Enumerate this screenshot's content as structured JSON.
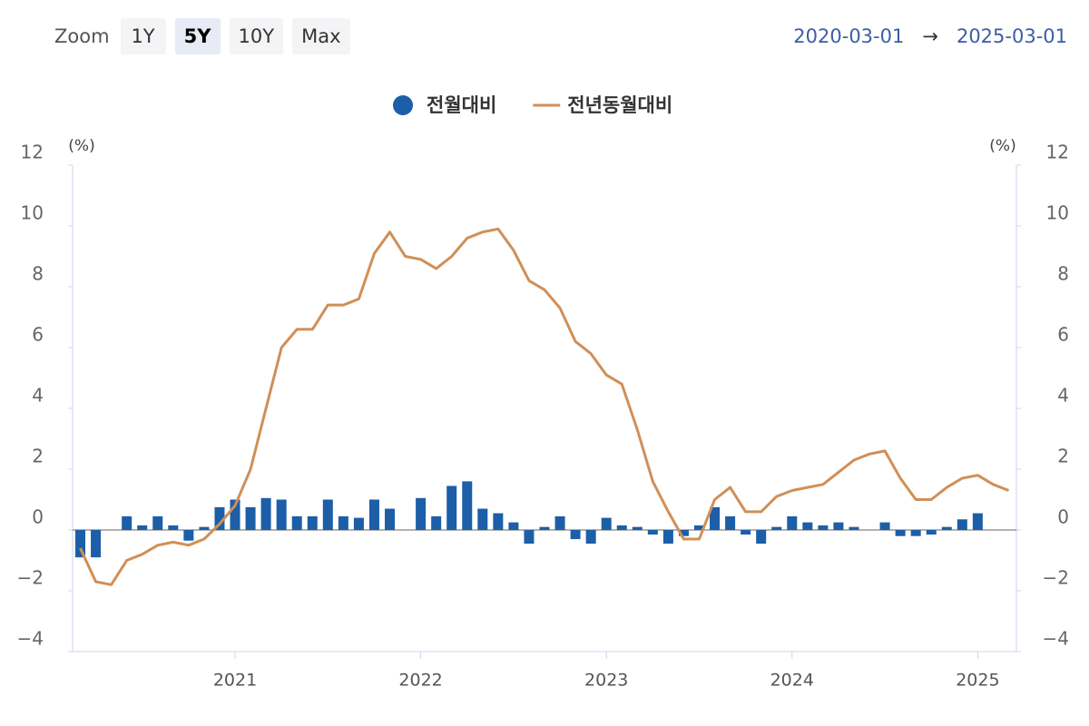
{
  "controls": {
    "zoom_label": "Zoom",
    "buttons": [
      {
        "label": "1Y",
        "selected": false
      },
      {
        "label": "5Y",
        "selected": true
      },
      {
        "label": "10Y",
        "selected": false
      },
      {
        "label": "Max",
        "selected": false
      }
    ],
    "range_start": "2020-03-01",
    "range_arrow": "→",
    "range_end": "2025-03-01"
  },
  "chart_data": {
    "type": "bar",
    "y_unit": "(%)",
    "y2_unit": "(%)",
    "categories": [
      null,
      null,
      null,
      null,
      null,
      null,
      null,
      null,
      null,
      null,
      "2021",
      null,
      null,
      null,
      null,
      null,
      null,
      null,
      null,
      null,
      null,
      null,
      "2022",
      null,
      null,
      null,
      null,
      null,
      null,
      null,
      null,
      null,
      null,
      null,
      "2023",
      null,
      null,
      null,
      null,
      null,
      null,
      null,
      null,
      null,
      null,
      null,
      "2024",
      null,
      null,
      null,
      null,
      null,
      null,
      null,
      null,
      null,
      null,
      null,
      "2025",
      null,
      null
    ],
    "series": [
      {
        "name": "전월대비",
        "type": "bar",
        "color": "#1c5ea8",
        "values": [
          -0.9,
          -0.9,
          0,
          0.45,
          0.15,
          0.45,
          0.15,
          -0.35,
          0.1,
          0.75,
          1.0,
          0.75,
          1.05,
          1.0,
          0.45,
          0.45,
          1.0,
          0.45,
          0.4,
          1.0,
          0.7,
          0,
          1.05,
          0.45,
          1.45,
          1.6,
          0.7,
          0.55,
          0.25,
          -0.45,
          0.1,
          0.45,
          -0.3,
          -0.45,
          0.4,
          0.15,
          0.1,
          -0.15,
          -0.45,
          -0.2,
          0.15,
          0.75,
          0.45,
          -0.15,
          -0.45,
          0.1,
          0.45,
          0.25,
          0.15,
          0.25,
          0.1,
          0,
          0.25,
          -0.2,
          -0.2,
          -0.15,
          0.1,
          0.35,
          0.55,
          null,
          null
        ]
      },
      {
        "name": "전년동월대비",
        "type": "line",
        "axis": "y2",
        "color": "#d08f57",
        "values": [
          -0.6,
          -1.7,
          -1.8,
          -1.0,
          -0.8,
          -0.5,
          -0.4,
          -0.5,
          -0.3,
          0.2,
          0.8,
          2.0,
          4.0,
          6.0,
          6.6,
          6.6,
          7.4,
          7.4,
          7.6,
          9.1,
          9.8,
          9.0,
          8.9,
          8.6,
          9.0,
          9.6,
          9.8,
          9.9,
          9.2,
          8.2,
          7.9,
          7.3,
          6.2,
          5.8,
          5.1,
          4.8,
          3.3,
          1.6,
          0.6,
          -0.3,
          -0.3,
          1.0,
          1.4,
          0.6,
          0.6,
          1.1,
          1.3,
          1.4,
          1.5,
          1.9,
          2.3,
          2.5,
          2.6,
          1.7,
          1.0,
          1.0,
          1.4,
          1.7,
          1.8,
          1.5,
          1.3
        ]
      }
    ],
    "ylim": [
      -4,
      12
    ],
    "yticks": [
      {
        "value": -4,
        "label": "−4"
      },
      {
        "value": -2,
        "label": "−2"
      },
      0,
      2,
      4,
      6,
      8,
      10,
      12
    ],
    "y2lim": [
      -4,
      12
    ],
    "y2ticks": [
      {
        "value": -4,
        "label": "−4"
      },
      {
        "value": -2,
        "label": "−2"
      },
      0,
      2,
      4,
      6,
      8,
      10,
      12
    ]
  }
}
